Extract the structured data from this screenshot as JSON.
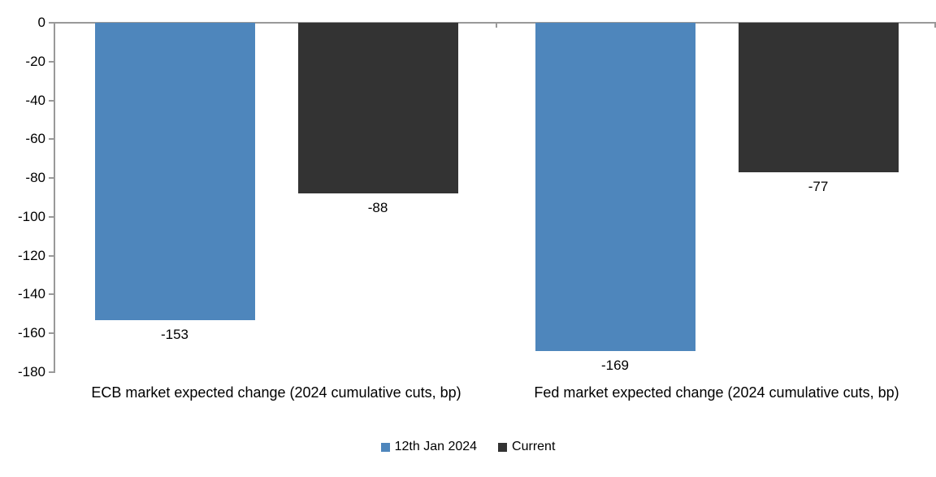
{
  "chart_data": {
    "type": "bar",
    "categories": [
      "ECB market expected change (2024 cumulative cuts, bp)",
      "Fed market expected change (2024 cumulative cuts, bp)"
    ],
    "series": [
      {
        "name": "12th Jan 2024",
        "color": "#4E86BC",
        "values": [
          -153,
          -169
        ]
      },
      {
        "name": "Current",
        "color": "#333333",
        "values": [
          -88,
          -77
        ]
      }
    ],
    "data_labels": [
      "-153",
      "-88",
      "-169",
      "-77"
    ],
    "ylim": [
      -180,
      0
    ],
    "yticks": [
      0,
      -20,
      -40,
      -60,
      -80,
      -100,
      -120,
      -140,
      -160,
      -180
    ],
    "axis_color": "#999999",
    "grid": "off",
    "legend_position": "bottom"
  }
}
